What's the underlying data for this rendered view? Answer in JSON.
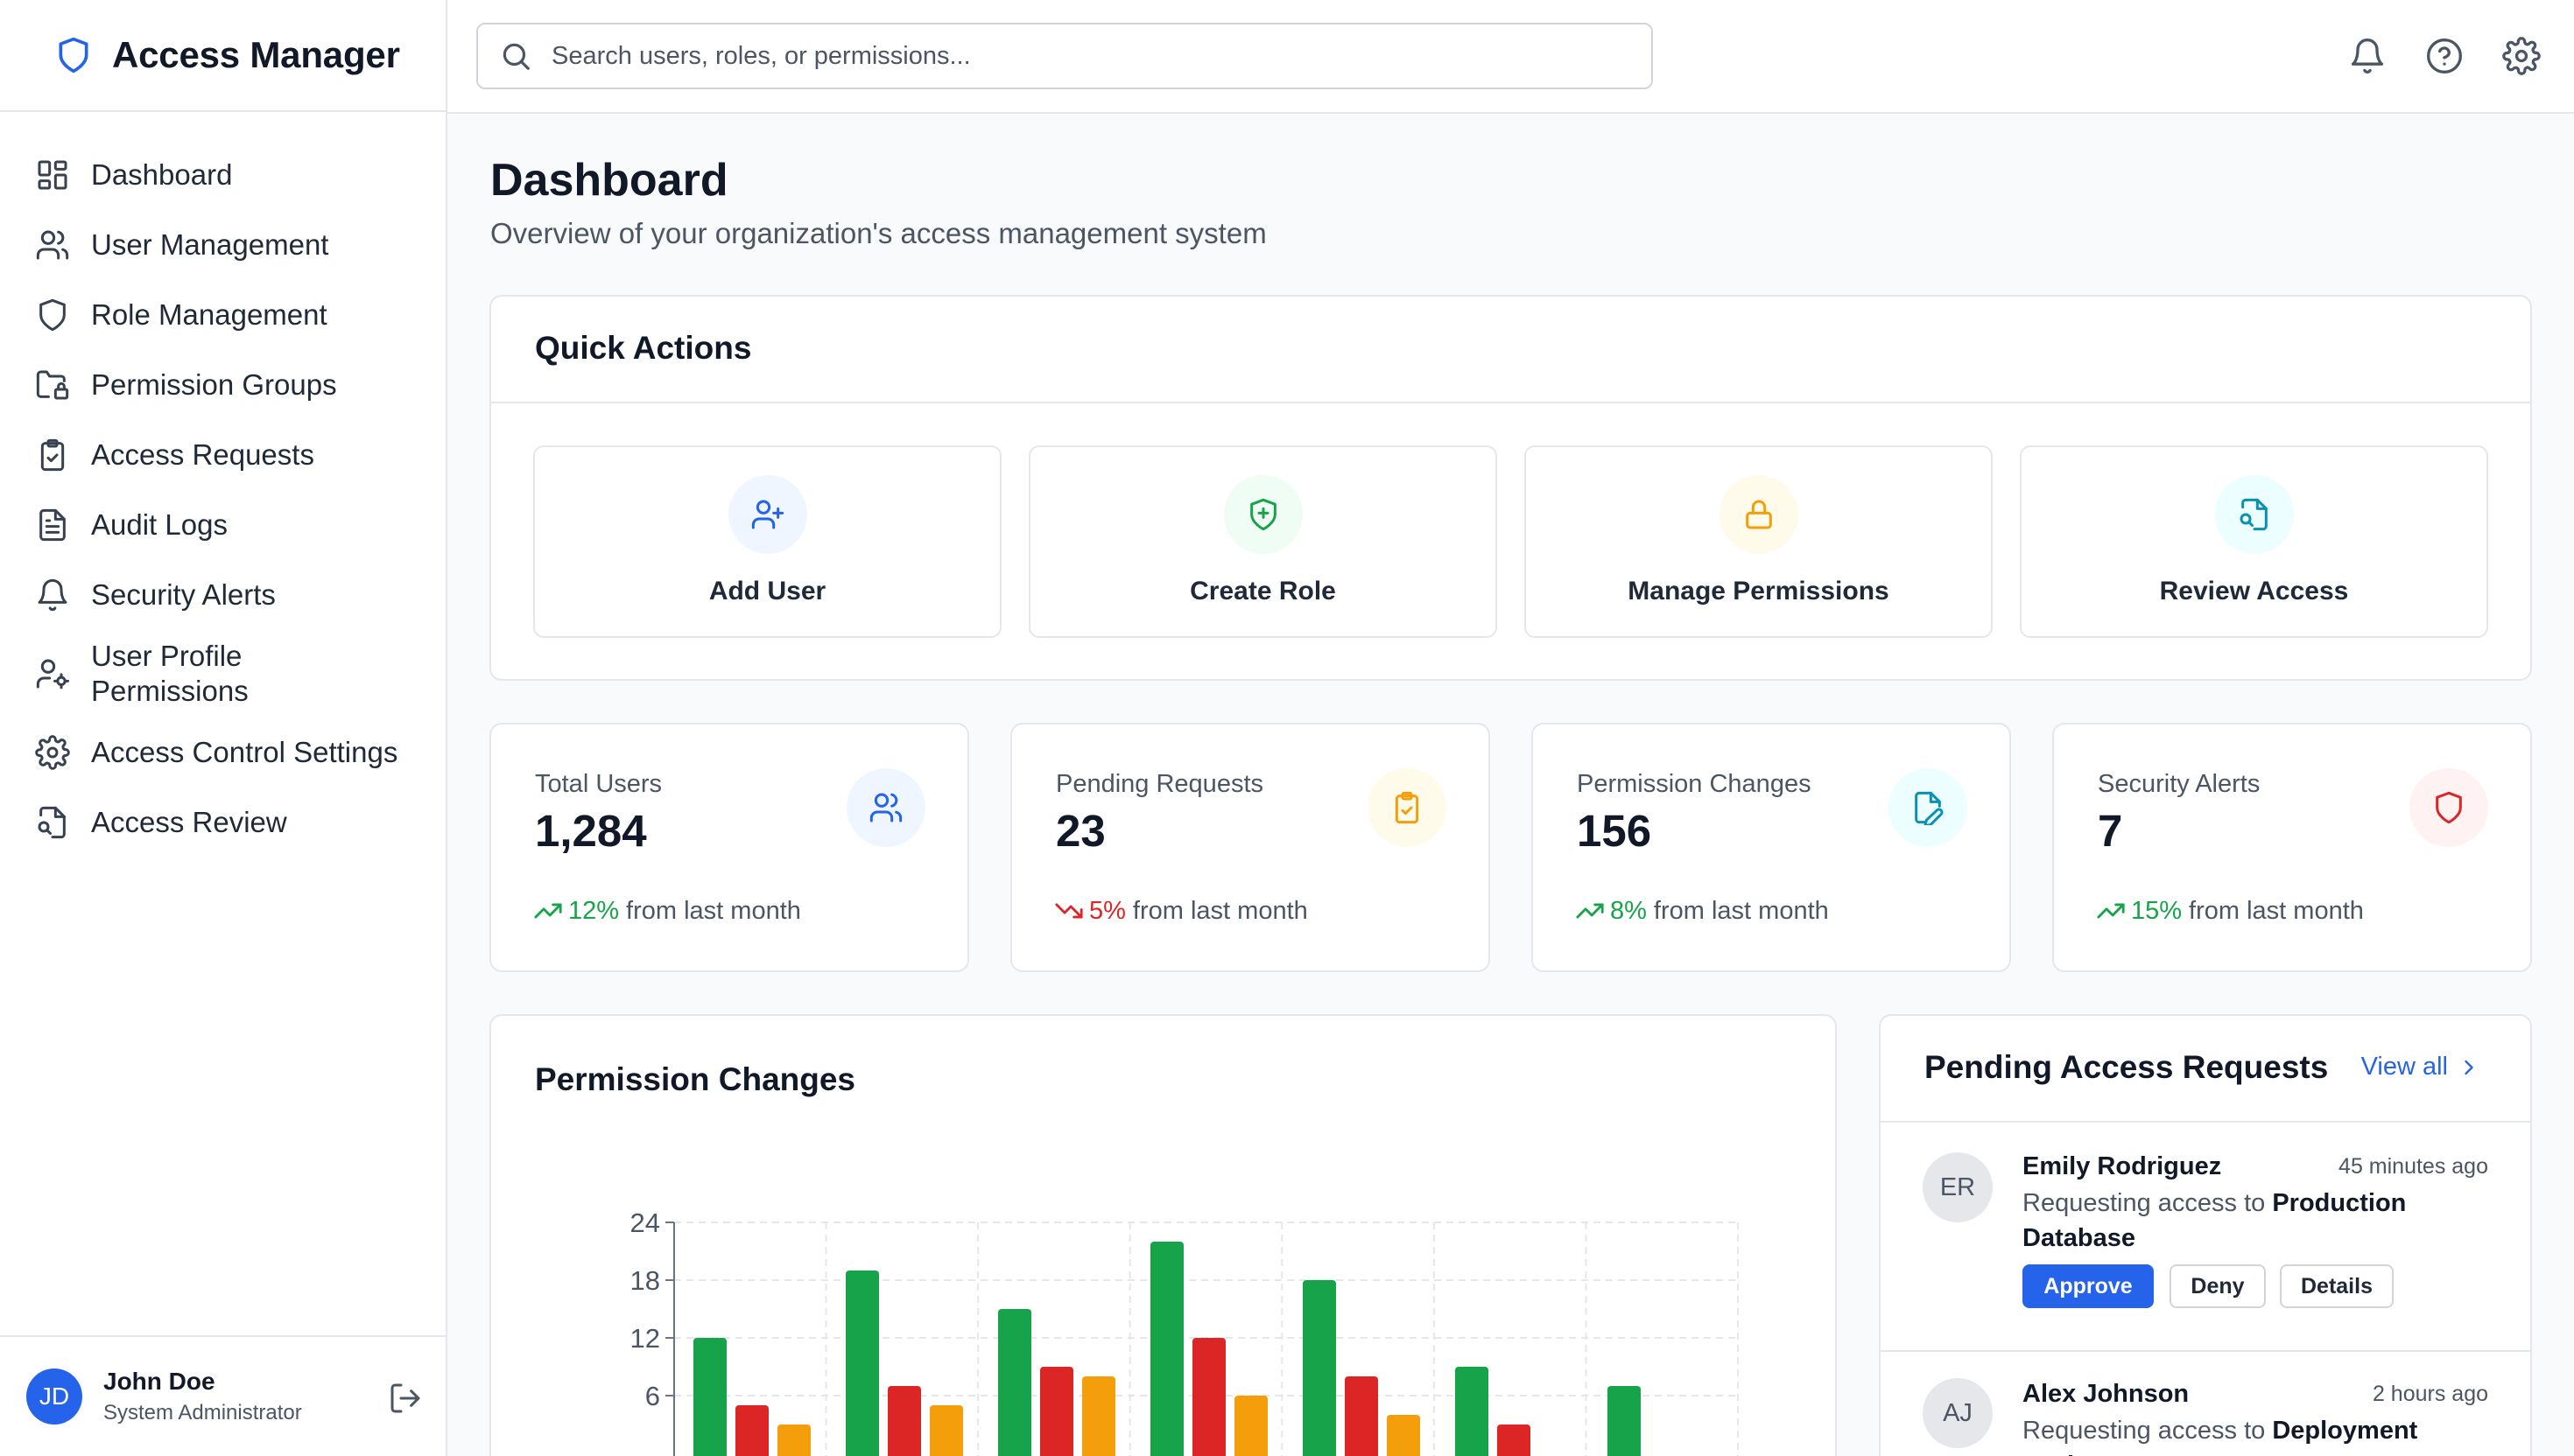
{
  "app": {
    "title": "Access Manager"
  },
  "sidebar": {
    "items": [
      {
        "label": "Dashboard",
        "icon": "dashboard-icon"
      },
      {
        "label": "User Management",
        "icon": "users-icon"
      },
      {
        "label": "Role Management",
        "icon": "shield-icon"
      },
      {
        "label": "Permission Groups",
        "icon": "folder-lock-icon"
      },
      {
        "label": "Access Requests",
        "icon": "clipboard-check-icon"
      },
      {
        "label": "Audit Logs",
        "icon": "document-icon"
      },
      {
        "label": "Security Alerts",
        "icon": "bell-icon"
      },
      {
        "label": "User Profile Permissions",
        "icon": "user-cog-icon"
      },
      {
        "label": "Access Control Settings",
        "icon": "gear-icon"
      },
      {
        "label": "Access Review",
        "icon": "file-search-icon"
      }
    ],
    "user": {
      "initials": "JD",
      "name": "John Doe",
      "role": "System Administrator"
    }
  },
  "topbar": {
    "search_placeholder": "Search users, roles, or permissions...",
    "icons": [
      "bell-icon",
      "help-icon",
      "gear-icon"
    ]
  },
  "page": {
    "title": "Dashboard",
    "subtitle": "Overview of your organization's access management system"
  },
  "quick_actions": {
    "title": "Quick Actions",
    "items": [
      {
        "label": "Add User",
        "icon": "user-plus-icon",
        "color": "#2563eb"
      },
      {
        "label": "Create Role",
        "icon": "shield-plus-icon",
        "color": "#16a34a"
      },
      {
        "label": "Manage Permissions",
        "icon": "lock-icon",
        "color": "#f59e0b"
      },
      {
        "label": "Review Access",
        "icon": "file-search-icon",
        "color": "#0891b2"
      }
    ]
  },
  "stats": [
    {
      "label": "Total Users",
      "value": "1,284",
      "trend": "12%",
      "trend_dir": "up",
      "trend_text": "from last month",
      "icon": "users-icon",
      "color": "#2563eb"
    },
    {
      "label": "Pending Requests",
      "value": "23",
      "trend": "5%",
      "trend_dir": "down",
      "trend_text": "from last month",
      "icon": "clipboard-check-icon",
      "color": "#f59e0b"
    },
    {
      "label": "Permission Changes",
      "value": "156",
      "trend": "8%",
      "trend_dir": "up",
      "trend_text": "from last month",
      "icon": "file-edit-icon",
      "color": "#0891b2"
    },
    {
      "label": "Security Alerts",
      "value": "7",
      "trend": "15%",
      "trend_dir": "up",
      "trend_text": "from last month",
      "icon": "shield-icon",
      "color": "#dc2626"
    }
  ],
  "chart_data": {
    "type": "bar",
    "title": "Permission Changes",
    "ylim": [
      0,
      24
    ],
    "yticks": [
      6,
      12,
      18,
      24
    ],
    "grid": true,
    "series": [
      {
        "color": "#16a34a",
        "values": [
          12,
          19,
          15,
          22,
          18,
          9,
          7
        ]
      },
      {
        "color": "#dc2626",
        "values": [
          5,
          7,
          9,
          12,
          8,
          3,
          0
        ]
      },
      {
        "color": "#f59e0b",
        "values": [
          3,
          5,
          8,
          6,
          4,
          0,
          0
        ]
      }
    ]
  },
  "requests": {
    "title": "Pending Access Requests",
    "view_all": "View all",
    "items": [
      {
        "initials": "ER",
        "name": "Emily Rodriguez",
        "time": "45 minutes ago",
        "prefix": "Requesting access to",
        "target": "Production Database",
        "approve": "Approve",
        "deny": "Deny",
        "details": "Details"
      },
      {
        "initials": "AJ",
        "name": "Alex Johnson",
        "time": "2 hours ago",
        "prefix": "Requesting access to",
        "target": "Deployment Tools"
      }
    ]
  }
}
